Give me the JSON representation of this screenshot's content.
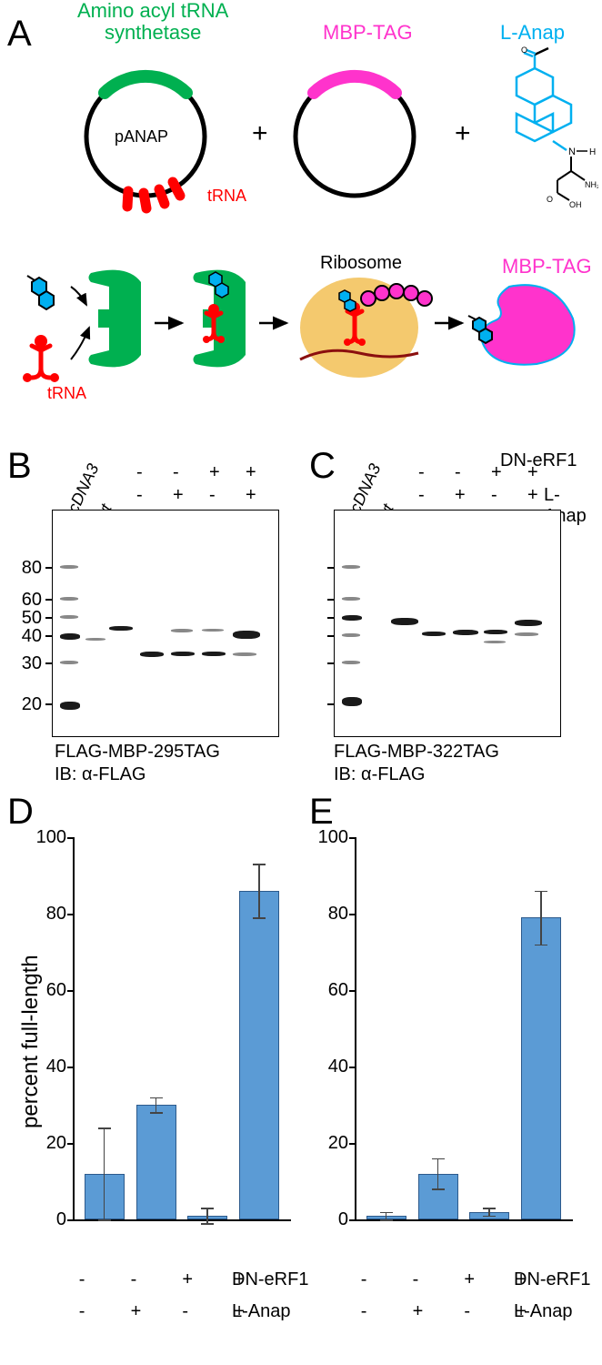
{
  "panelA": {
    "label": "A",
    "synthetase_label": "Amino acyl tRNA\nsynthetase",
    "synthetase_color": "#00b050",
    "mbp_tag_label": "MBP-TAG",
    "mbp_tag_color": "#ff33cc",
    "anap_label": "L-Anap",
    "anap_color": "#00b0f0",
    "panap_label": "pANAP",
    "trna_label": "tRNA",
    "trna_color": "#ff0000",
    "ribosome_label": "Ribosome",
    "ribosome_color": "#f4c96e",
    "mrna_color": "#8b0f0f",
    "mbp_tag_product": "MBP-TAG"
  },
  "panelB": {
    "label": "B",
    "title": "FLAG-MBP-295TAG",
    "ib": "IB: α-FLAG",
    "mw_markers": [
      80,
      60,
      50,
      40,
      30,
      20
    ],
    "lane_headers": [
      "pcDNA3",
      "wt"
    ],
    "dn_erf1": [
      "-",
      "-",
      "+",
      "+"
    ],
    "l_anap": [
      "-",
      "+",
      "-",
      "+"
    ],
    "dn_label": "DN-eRF1",
    "anap_label": "L-Anap"
  },
  "panelC": {
    "label": "C",
    "title": "FLAG-MBP-322TAG",
    "ib": "IB: α-FLAG",
    "lane_headers": [
      "pcDNA3",
      "wt"
    ]
  },
  "panelD": {
    "label": "D",
    "ylabel": "percent full-length",
    "ylim": [
      0,
      100
    ],
    "ytick_step": 20,
    "values": [
      12,
      30,
      1,
      86
    ],
    "errors": [
      12,
      2,
      2,
      7
    ],
    "bar_color": "#5b9bd5",
    "dn_erf1": [
      "-",
      "-",
      "+",
      "+"
    ],
    "l_anap": [
      "-",
      "+",
      "-",
      "+"
    ],
    "dn_label": "DN-eRF1",
    "anap_label": "L-Anap"
  },
  "panelE": {
    "label": "E",
    "ylim": [
      0,
      100
    ],
    "ytick_step": 20,
    "values": [
      1,
      12,
      2,
      79
    ],
    "errors": [
      1,
      4,
      1,
      7
    ],
    "bar_color": "#5b9bd5"
  },
  "colors": {
    "axis": "#000000",
    "text": "#000000"
  }
}
